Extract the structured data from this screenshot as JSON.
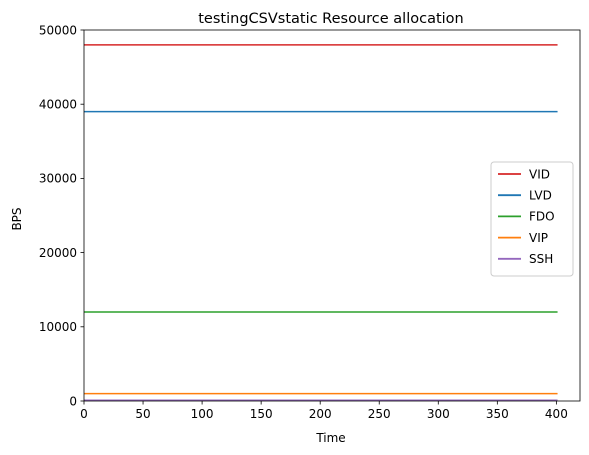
{
  "chart_data": {
    "type": "line",
    "title": "testingCSVstatic Resource allocation",
    "xlabel": "Time",
    "ylabel": "BPS",
    "xlim": [
      0,
      420
    ],
    "ylim": [
      0,
      50000
    ],
    "xticks": [
      0,
      50,
      100,
      150,
      200,
      250,
      300,
      350,
      400
    ],
    "yticks": [
      0,
      10000,
      20000,
      30000,
      40000,
      50000
    ],
    "grid": false,
    "legend_position": "center-right",
    "x": [
      0,
      401
    ],
    "series": [
      {
        "name": "VID",
        "color": "#d62728",
        "values": [
          48000,
          48000
        ]
      },
      {
        "name": "LVD",
        "color": "#1f77b4",
        "values": [
          39000,
          39000
        ]
      },
      {
        "name": "FDO",
        "color": "#2ca02c",
        "values": [
          12000,
          12000
        ]
      },
      {
        "name": "VIP",
        "color": "#ff7f0e",
        "values": [
          1000,
          1000
        ]
      },
      {
        "name": "SSH",
        "color": "#9467bd",
        "values": [
          100,
          100
        ]
      }
    ]
  }
}
